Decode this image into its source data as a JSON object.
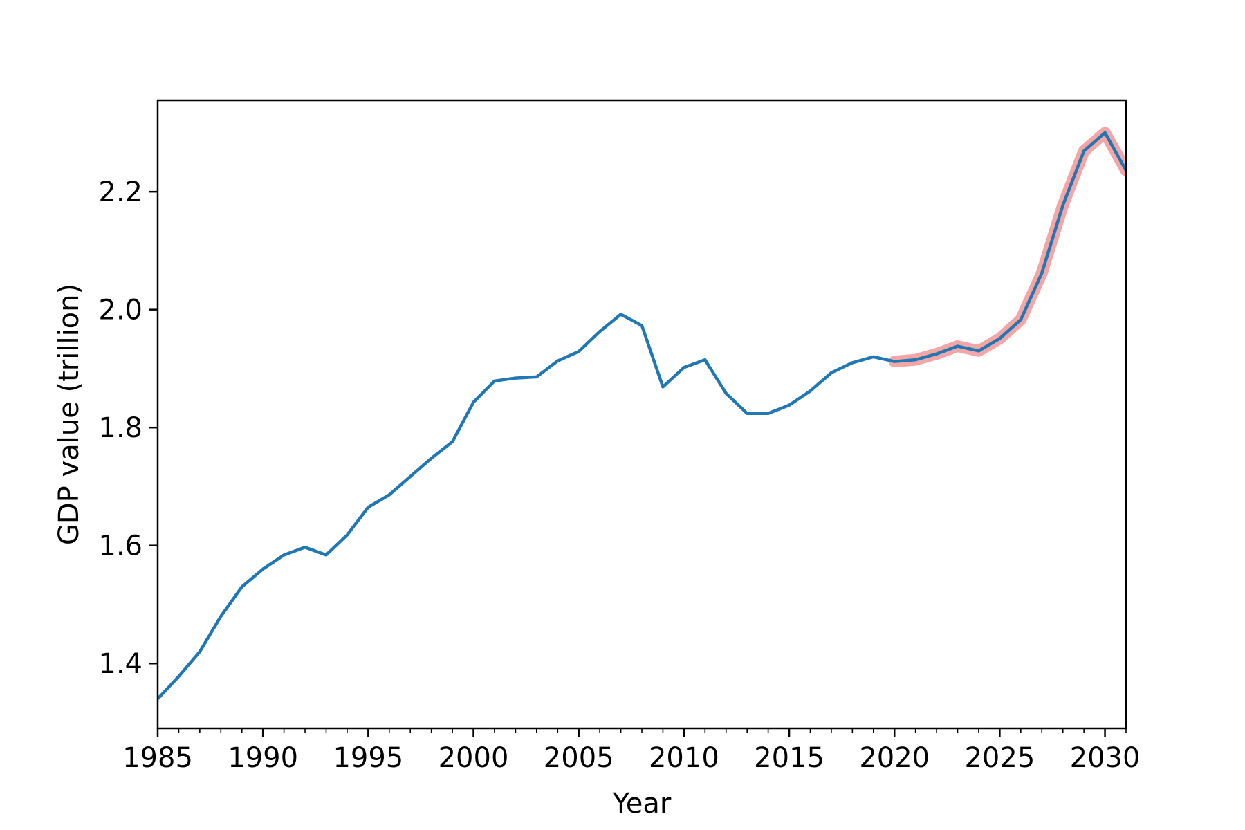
{
  "chart_data": {
    "type": "line",
    "title": "",
    "xlabel": "Year",
    "ylabel": "GDP value (trillion)",
    "xlim": [
      1985,
      2031
    ],
    "ylim": [
      1.29,
      2.355
    ],
    "grid": false,
    "legend": "none",
    "xticks": [
      1985,
      1990,
      1995,
      2000,
      2005,
      2010,
      2015,
      2020,
      2025,
      2030
    ],
    "yticks": [
      1.4,
      1.6,
      1.8,
      2.0,
      2.2
    ],
    "ytick_labels": [
      "1.4",
      "1.6",
      "1.8",
      "2.0",
      "2.2"
    ],
    "x": [
      1985,
      1986,
      1987,
      1988,
      1989,
      1990,
      1991,
      1992,
      1993,
      1994,
      1995,
      1996,
      1997,
      1998,
      1999,
      2000,
      2001,
      2002,
      2003,
      2004,
      2005,
      2006,
      2007,
      2008,
      2009,
      2010,
      2011,
      2012,
      2013,
      2014,
      2015,
      2016,
      2017,
      2018,
      2019,
      2020,
      2021,
      2022,
      2023,
      2024,
      2025,
      2026,
      2027,
      2028,
      2029,
      2030,
      2031
    ],
    "series": [
      {
        "color": "#1f77b4",
        "values": [
          1.34,
          1.378,
          1.42,
          1.48,
          1.53,
          1.56,
          1.584,
          1.597,
          1.584,
          1.618,
          1.665,
          1.686,
          1.717,
          1.748,
          1.776,
          1.843,
          1.879,
          1.884,
          1.886,
          1.913,
          1.929,
          1.963,
          1.992,
          1.973,
          1.869,
          1.902,
          1.915,
          1.858,
          1.824,
          1.824,
          1.838,
          1.862,
          1.893,
          1.91,
          1.92,
          1.912,
          1.915,
          1.925,
          1.938,
          1.93,
          1.951,
          1.983,
          2.062,
          2.177,
          2.269,
          2.3,
          2.236
        ]
      }
    ],
    "highlight": {
      "color": "#f4a6a6",
      "x_start": 2020,
      "x_end": 2031
    }
  }
}
